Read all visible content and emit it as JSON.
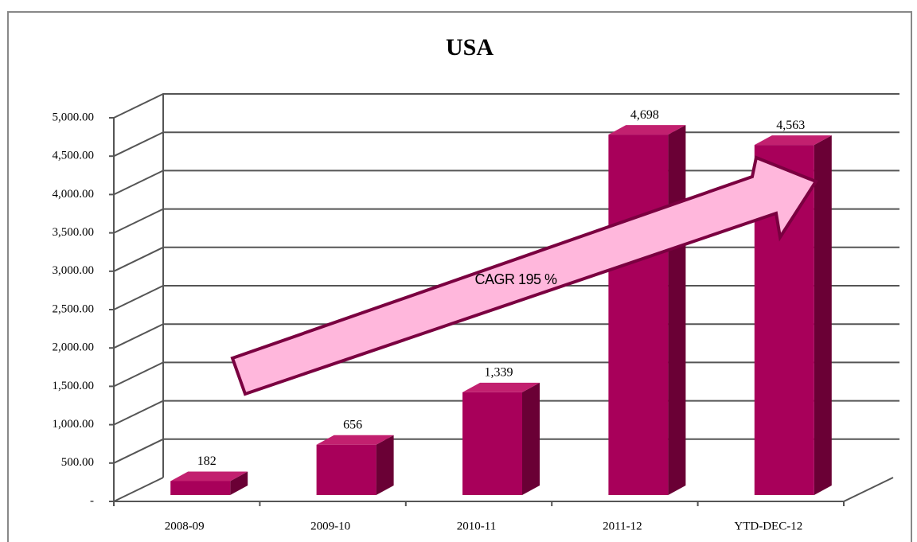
{
  "chart_data": {
    "type": "bar",
    "title": "USA",
    "categories": [
      "2008-09",
      "2009-10",
      "2010-11",
      "2011-12",
      "YTD-DEC-12"
    ],
    "values": [
      182,
      656,
      1339,
      4698,
      4563
    ],
    "value_labels": [
      "182",
      "656",
      "1,339",
      "4,698",
      "4,563"
    ],
    "color": "#a8005a",
    "ylim": [
      0,
      5000
    ],
    "yticks": [
      {
        "value": 0,
        "label": "-"
      },
      {
        "value": 500,
        "label": "500.00"
      },
      {
        "value": 1000,
        "label": "1,000.00"
      },
      {
        "value": 1500,
        "label": "1,500.00"
      },
      {
        "value": 2000,
        "label": "2,000.00"
      },
      {
        "value": 2500,
        "label": "2,500.00"
      },
      {
        "value": 3000,
        "label": "3,000.00"
      },
      {
        "value": 3500,
        "label": "3,500.00"
      },
      {
        "value": 4000,
        "label": "4,000.00"
      },
      {
        "value": 4500,
        "label": "4,500.00"
      },
      {
        "value": 5000,
        "label": "5,000.00"
      }
    ],
    "grid": true,
    "annotation": "CAGR 195 %"
  }
}
